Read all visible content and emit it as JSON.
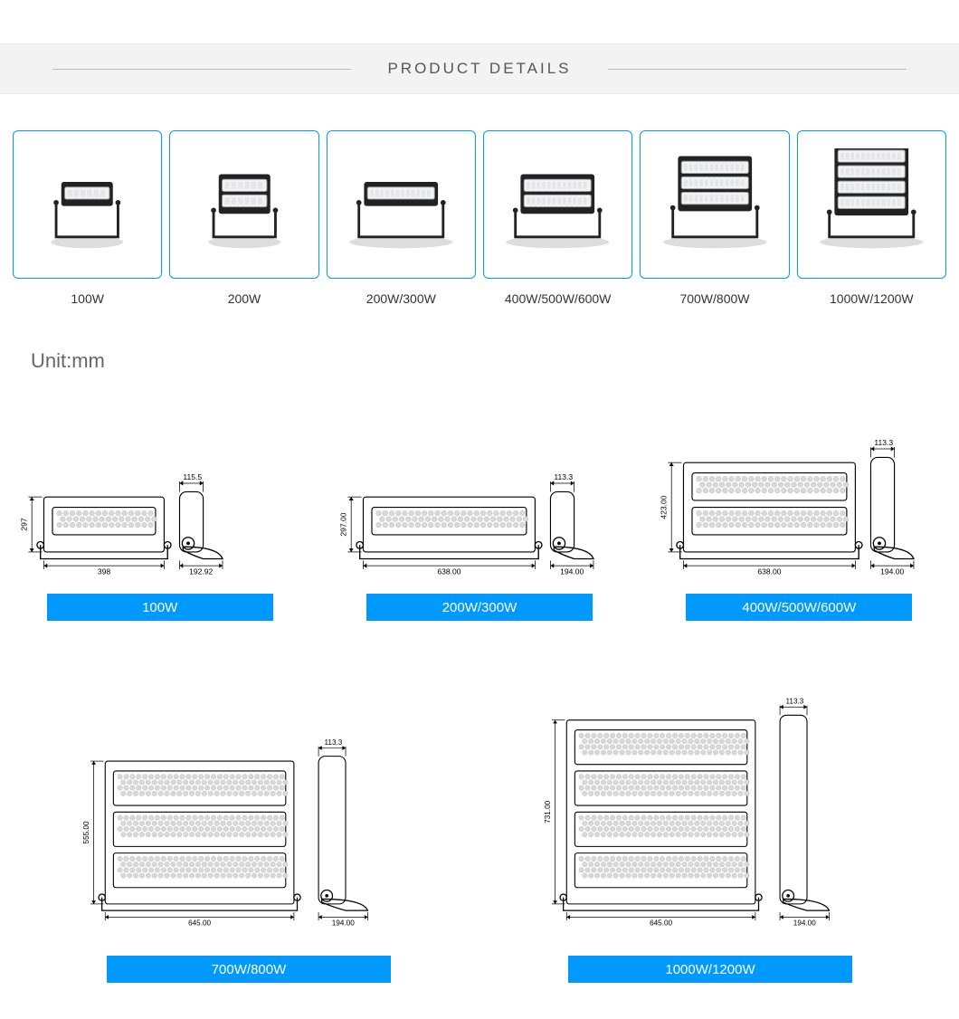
{
  "header": {
    "title": "PRODUCT DETAILS"
  },
  "colors": {
    "accent": "#0099ff",
    "border": "#0099ff",
    "header_bg": "#f3f3f3",
    "text": "#333333",
    "muted": "#666666"
  },
  "thumbs": {
    "border_color": "#0099ff",
    "items": [
      {
        "label": "100W",
        "modules_rows": 1,
        "cols": 1
      },
      {
        "label": "200W",
        "modules_rows": 2,
        "cols": 1
      },
      {
        "label": "200W/300W",
        "modules_rows": 1,
        "cols": 2
      },
      {
        "label": "400W/500W/600W",
        "modules_rows": 2,
        "cols": 2
      },
      {
        "label": "700W/800W",
        "modules_rows": 3,
        "cols": 2
      },
      {
        "label": "1000W/1200W",
        "modules_rows": 4,
        "cols": 2
      }
    ]
  },
  "dimensions": {
    "unit_label": "Unit:mm",
    "bar_color": "#0099ff",
    "row1": [
      {
        "label": "100W",
        "width_mm": "398",
        "side_mm": "192.92",
        "height_mm": "297",
        "top_mm": "115.5",
        "rows": 1
      },
      {
        "label": "200W/300W",
        "width_mm": "638.00",
        "side_mm": "194.00",
        "height_mm": "297.00",
        "top_mm": "113.3",
        "rows": 1
      },
      {
        "label": "400W/500W/600W",
        "width_mm": "638.00",
        "side_mm": "194.00",
        "height_mm": "423.00",
        "top_mm": "113.3",
        "rows": 2
      }
    ],
    "row2": [
      {
        "label": "700W/800W",
        "width_mm": "645.00",
        "side_mm": "194.00",
        "height_mm": "555.00",
        "top_mm": "113.3",
        "rows": 3
      },
      {
        "label": "1000W/1200W",
        "width_mm": "645.00",
        "side_mm": "194.00",
        "height_mm": "731.00",
        "top_mm": "113.3",
        "rows": 4
      }
    ]
  }
}
